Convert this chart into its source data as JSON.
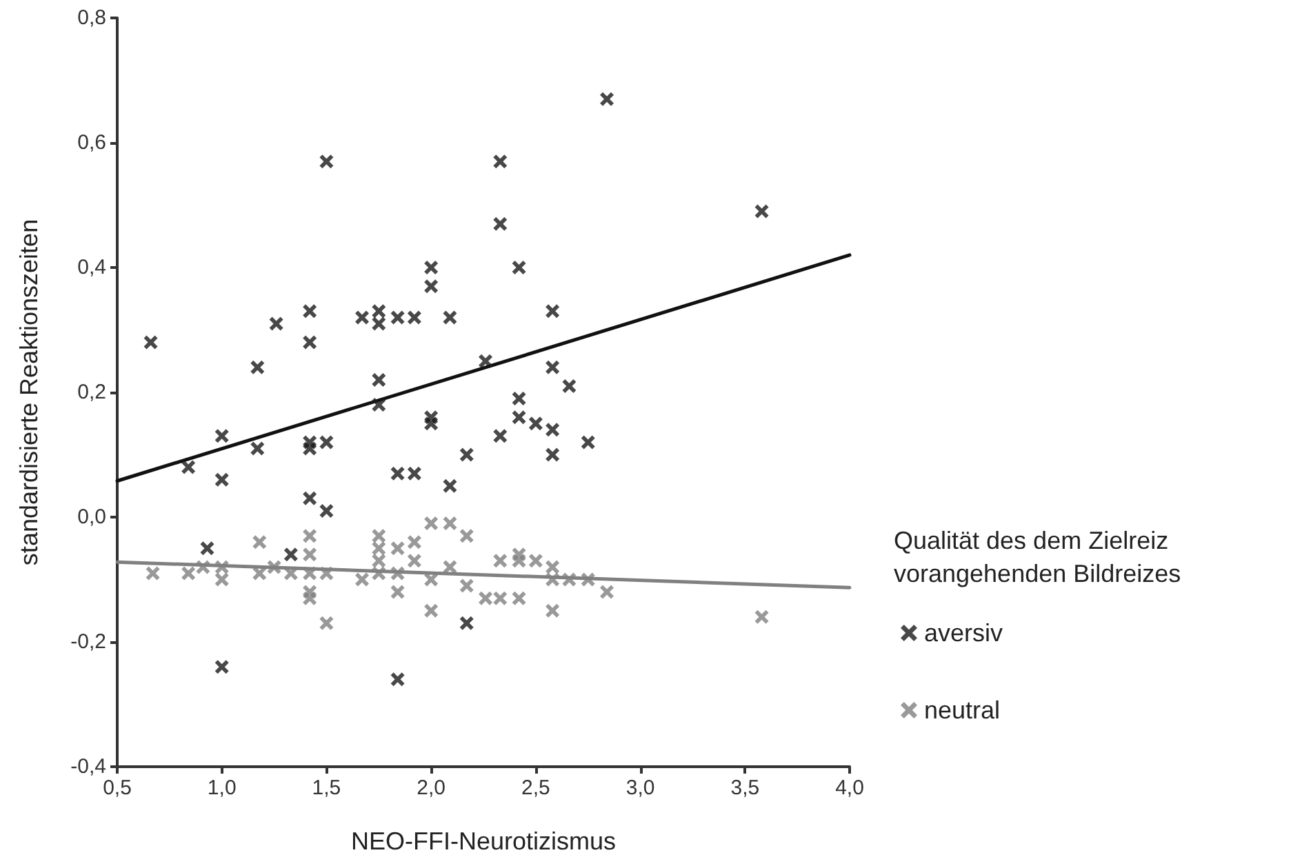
{
  "chart_data": {
    "type": "scatter",
    "xlabel": "NEO-FFI-Neurotizismus",
    "ylabel": "standardisierte Reaktionszeiten",
    "legend_title": "Qualität des dem Zielreiz\nvorangehenden Bildreizes",
    "xlim": [
      0.5,
      4.0
    ],
    "xticks": [
      {
        "value": 0.5,
        "label": "0,5"
      },
      {
        "value": 1.0,
        "label": "1,0"
      },
      {
        "value": 1.5,
        "label": "1,5"
      },
      {
        "value": 2.0,
        "label": "2,0"
      },
      {
        "value": 2.5,
        "label": "2,5"
      },
      {
        "value": 3.0,
        "label": "3,0"
      },
      {
        "value": 3.5,
        "label": "3,5"
      },
      {
        "value": 4.0,
        "label": "4,0"
      }
    ],
    "ylim": [
      -0.4,
      0.8
    ],
    "yticks": [
      {
        "value": -0.4,
        "label": "-0,4"
      },
      {
        "value": -0.2,
        "label": "-0,2"
      },
      {
        "value": 0.0,
        "label": "0,0"
      },
      {
        "value": 0.2,
        "label": "0,2"
      },
      {
        "value": 0.4,
        "label": "0,4"
      },
      {
        "value": 0.6,
        "label": "0,6"
      },
      {
        "value": 0.8,
        "label": "0,8"
      }
    ],
    "grid": false,
    "legend": "right",
    "marker": "cross",
    "series": [
      {
        "name": "aversiv",
        "color": "#1a1a1a",
        "x": [
          0.66,
          0.84,
          0.93,
          1.0,
          1.0,
          1.0,
          1.17,
          1.17,
          1.26,
          1.33,
          1.42,
          1.42,
          1.42,
          1.42,
          1.42,
          1.5,
          1.5,
          1.5,
          1.67,
          1.75,
          1.75,
          1.75,
          1.75,
          1.84,
          1.84,
          1.84,
          1.92,
          1.92,
          2.0,
          2.0,
          2.0,
          2.0,
          2.09,
          2.09,
          2.17,
          2.17,
          2.26,
          2.33,
          2.33,
          2.33,
          2.42,
          2.42,
          2.42,
          2.5,
          2.58,
          2.58,
          2.58,
          2.58,
          2.66,
          2.75,
          2.84,
          3.58
        ],
        "values": [
          0.28,
          0.08,
          -0.05,
          0.13,
          0.06,
          -0.24,
          0.24,
          0.11,
          0.31,
          -0.06,
          0.33,
          0.28,
          0.12,
          0.11,
          0.03,
          0.57,
          0.12,
          0.01,
          0.32,
          0.33,
          0.31,
          0.22,
          0.18,
          0.32,
          0.07,
          -0.26,
          0.32,
          0.07,
          0.4,
          0.37,
          0.16,
          0.15,
          0.32,
          0.05,
          0.1,
          -0.17,
          0.25,
          0.57,
          0.47,
          0.13,
          0.4,
          0.19,
          0.16,
          0.15,
          0.33,
          0.24,
          0.14,
          0.1,
          0.21,
          0.12,
          0.67,
          0.49
        ]
      },
      {
        "name": "neutral",
        "color": "#808080",
        "x": [
          0.67,
          0.84,
          0.91,
          1.0,
          1.0,
          1.18,
          1.18,
          1.25,
          1.33,
          1.42,
          1.42,
          1.42,
          1.42,
          1.42,
          1.5,
          1.5,
          1.67,
          1.75,
          1.75,
          1.75,
          1.75,
          1.84,
          1.84,
          1.84,
          1.92,
          1.92,
          2.0,
          2.0,
          2.0,
          2.09,
          2.09,
          2.17,
          2.17,
          2.26,
          2.33,
          2.33,
          2.42,
          2.42,
          2.42,
          2.5,
          2.58,
          2.58,
          2.58,
          2.66,
          2.75,
          2.84,
          3.58
        ],
        "values": [
          -0.09,
          -0.09,
          -0.08,
          -0.08,
          -0.1,
          -0.04,
          -0.09,
          -0.08,
          -0.09,
          -0.03,
          -0.06,
          -0.09,
          -0.12,
          -0.13,
          -0.09,
          -0.17,
          -0.1,
          -0.03,
          -0.05,
          -0.07,
          -0.09,
          -0.05,
          -0.09,
          -0.12,
          -0.04,
          -0.07,
          -0.01,
          -0.1,
          -0.15,
          -0.01,
          -0.08,
          -0.03,
          -0.11,
          -0.13,
          -0.07,
          -0.13,
          -0.06,
          -0.07,
          -0.13,
          -0.07,
          -0.08,
          -0.1,
          -0.15,
          -0.1,
          -0.1,
          -0.12,
          -0.16
        ]
      },
      {
        "type": "line",
        "color": "#111111",
        "line_style": "solid",
        "marker": "none",
        "x": [
          0.5,
          4.0
        ],
        "values": [
          0.058,
          0.42
        ]
      },
      {
        "type": "line",
        "color": "#808080",
        "line_style": "solid",
        "marker": "none",
        "x": [
          0.5,
          4.0
        ],
        "values": [
          -0.072,
          -0.113
        ]
      }
    ]
  }
}
